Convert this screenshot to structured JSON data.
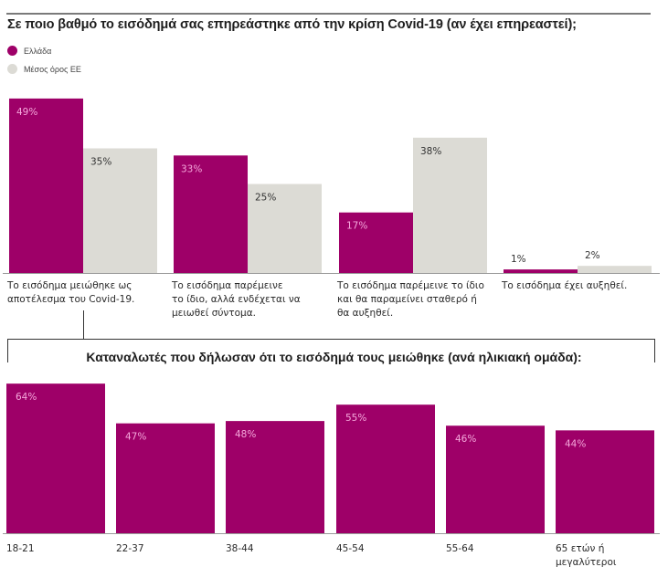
{
  "colors": {
    "greece": "#9e0068",
    "eu": "#dcdbd5",
    "label_on_greece": "#f5a8dc",
    "label_on_eu": "#333333",
    "axis": "#9a9a9a",
    "bracket": "#333333"
  },
  "chart_data": [
    {
      "type": "bar",
      "title": "Σε ποιο βαθμό το εισόδημά σας επηρεάστηκε από την κρίση Covid-19 (αν έχει επηρεαστεί);",
      "legend": {
        "placement": "top-left",
        "entries": [
          "Ελλάδα",
          "Μέσος όρος ΕΕ"
        ]
      },
      "categories": [
        "Το εισόδημα μειώθηκε ως αποτέλεσμα του Covid-19.",
        "Το εισόδημα παρέμεινε το ίδιο, αλλά ενδέχεται να μειωθεί σύντομα.",
        "Το εισόδημα παρέμεινε το ίδιο και θα παραμείνει σταθερό ή θα αυξηθεί.",
        "Το εισόδημα έχει αυξηθεί."
      ],
      "category_label_lines": [
        [
          "Το εισόδημα μειώθηκε ως",
          "αποτέλεσμα του Covid-19."
        ],
        [
          "Το εισόδημα παρέμεινε",
          "το ίδιο, αλλά ενδέχεται να",
          "μειωθεί σύντομα."
        ],
        [
          "Το εισόδημα παρέμεινε το ίδιο",
          "και θα παραμείνει σταθερό ή",
          "θα αυξηθεί."
        ],
        [
          "Το εισόδημα έχει αυξηθεί."
        ]
      ],
      "series": [
        {
          "name": "Ελλάδα",
          "values": [
            49,
            33,
            17,
            1
          ],
          "labels": [
            "49%",
            "33%",
            "17%",
            "1%"
          ]
        },
        {
          "name": "Μέσος όρος ΕΕ",
          "values": [
            35,
            25,
            38,
            2
          ],
          "labels": [
            "35%",
            "25%",
            "38%",
            "2%"
          ]
        }
      ],
      "xlabel": "",
      "ylabel": "",
      "ylim": [
        0,
        50
      ],
      "grid": false
    },
    {
      "type": "bar",
      "title": "Καταναλωτές που δήλωσαν ότι το εισόδημά τους μειώθηκε (ανά ηλικιακή ομάδα):",
      "categories": [
        "18-21",
        "22-37",
        "38-44",
        "45-54",
        "55-64",
        "65 ετών ή μεγαλύτεροι"
      ],
      "category_label_lines": [
        [
          "18-21"
        ],
        [
          "22-37"
        ],
        [
          "38-44"
        ],
        [
          "45-54"
        ],
        [
          "55-64"
        ],
        [
          "65 ετών ή",
          "μεγαλύτεροι"
        ]
      ],
      "series": [
        {
          "name": "Ελλάδα",
          "values": [
            64,
            47,
            48,
            55,
            46,
            44
          ],
          "labels": [
            "64%",
            "47%",
            "48%",
            "55%",
            "46%",
            "44%"
          ]
        }
      ],
      "xlabel": "",
      "ylabel": "",
      "ylim": [
        0,
        65
      ],
      "grid": false
    }
  ]
}
